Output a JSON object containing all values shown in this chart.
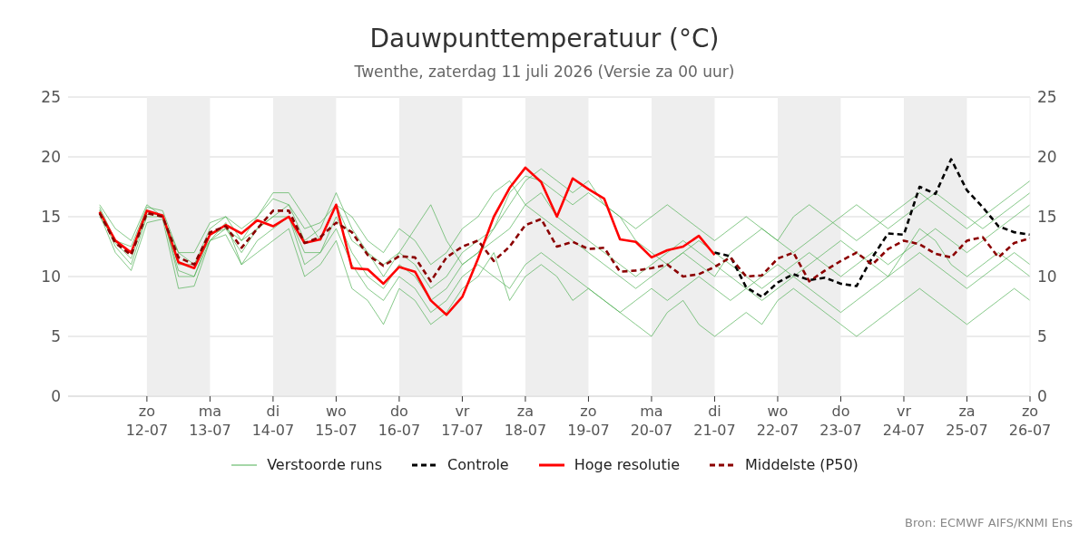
{
  "chart_data": {
    "type": "line",
    "title": "Dauwpunttemperatuur (°C)",
    "subtitle": "Twenthe, zaterdag 11 juli 2026 (Versie za 00 uur)",
    "x": [
      "2026-07-11T06:00",
      "2026-07-11T12:00",
      "2026-07-11T18:00",
      "2026-07-12T00:00",
      "2026-07-12T06:00",
      "2026-07-12T12:00",
      "2026-07-12T18:00",
      "2026-07-13T00:00",
      "2026-07-13T06:00",
      "2026-07-13T12:00",
      "2026-07-13T18:00",
      "2026-07-14T00:00",
      "2026-07-14T06:00",
      "2026-07-14T12:00",
      "2026-07-14T18:00",
      "2026-07-15T00:00",
      "2026-07-15T06:00",
      "2026-07-15T12:00",
      "2026-07-15T18:00",
      "2026-07-16T00:00",
      "2026-07-16T06:00",
      "2026-07-16T12:00",
      "2026-07-16T18:00",
      "2026-07-17T00:00",
      "2026-07-17T06:00",
      "2026-07-17T12:00",
      "2026-07-17T18:00",
      "2026-07-18T00:00",
      "2026-07-18T06:00",
      "2026-07-18T12:00",
      "2026-07-18T18:00",
      "2026-07-19T00:00",
      "2026-07-19T06:00",
      "2026-07-19T12:00",
      "2026-07-19T18:00",
      "2026-07-20T00:00",
      "2026-07-20T06:00",
      "2026-07-20T12:00",
      "2026-07-20T18:00",
      "2026-07-21T00:00",
      "2026-07-21T06:00",
      "2026-07-21T12:00",
      "2026-07-21T18:00",
      "2026-07-22T00:00",
      "2026-07-22T06:00",
      "2026-07-22T12:00",
      "2026-07-22T18:00",
      "2026-07-23T00:00",
      "2026-07-23T06:00",
      "2026-07-23T12:00",
      "2026-07-23T18:00",
      "2026-07-24T00:00",
      "2026-07-24T06:00",
      "2026-07-24T12:00",
      "2026-07-24T18:00",
      "2026-07-25T00:00",
      "2026-07-25T06:00",
      "2026-07-25T12:00",
      "2026-07-25T18:00",
      "2026-07-26T00:00"
    ],
    "series": [
      {
        "name": "Verstoorde runs",
        "color": "#4caf50",
        "line_style": "solid",
        "values": [
          15.8,
          13,
          12.5,
          15.8,
          15.5,
          12,
          11,
          14,
          15,
          14,
          15,
          16.5,
          16,
          14,
          14.5,
          16,
          13,
          12,
          11,
          12,
          11,
          9,
          10,
          12,
          13,
          14,
          17,
          18.4,
          18,
          17,
          16,
          17,
          16,
          15,
          13,
          12,
          11,
          12,
          13,
          12,
          11,
          10,
          9,
          10,
          11,
          12,
          11,
          10,
          11,
          12,
          11,
          12,
          13,
          14,
          13,
          12,
          13,
          14,
          15,
          16
        ]
      },
      {
        "color": "#4caf50",
        "line_style": "solid",
        "values": [
          15.2,
          12,
          10.5,
          14.5,
          14.8,
          9,
          9.2,
          13,
          13.5,
          11,
          12,
          13,
          14,
          10,
          11,
          13,
          9,
          8,
          6,
          9,
          8,
          6,
          7,
          9,
          10,
          12,
          8,
          10,
          11,
          10,
          8,
          9,
          8,
          7,
          6,
          5,
          7,
          8,
          6,
          5,
          6,
          7,
          6,
          8,
          9,
          8,
          7,
          6,
          5,
          6,
          7,
          8,
          9,
          8,
          7,
          6,
          7,
          8,
          9,
          8
        ]
      },
      {
        "color": "#4caf50",
        "line_style": "solid",
        "values": [
          16,
          14,
          13,
          16,
          15,
          12,
          12,
          14.5,
          15,
          13,
          15,
          17,
          17,
          15,
          13,
          16,
          15,
          13,
          12,
          14,
          13,
          11,
          12,
          14,
          15,
          17,
          18,
          16,
          15,
          14,
          13,
          12,
          11,
          10,
          9,
          10,
          11,
          12,
          11,
          10,
          12,
          13,
          14,
          13,
          12,
          13,
          14,
          15,
          16,
          15,
          14,
          15,
          16,
          17,
          16,
          15,
          14,
          15,
          16,
          17
        ]
      },
      {
        "color": "#4caf50",
        "line_style": "solid",
        "values": [
          15.5,
          12.5,
          11,
          15,
          15,
          10.5,
          10,
          13.5,
          14,
          12,
          14,
          15,
          15,
          12,
          12,
          15,
          12,
          10,
          9,
          11,
          10,
          8,
          9,
          11,
          12,
          13,
          14,
          16,
          17,
          15,
          14,
          13,
          12,
          11,
          10,
          11,
          12,
          13,
          12,
          11,
          10,
          9,
          8,
          9,
          10,
          11,
          12,
          13,
          12,
          11,
          10,
          12,
          14,
          13,
          11,
          10,
          11,
          12,
          11,
          10
        ]
      },
      {
        "color": "#4caf50",
        "line_style": "solid",
        "values": [
          15,
          13,
          12,
          15.5,
          15,
          11,
          11,
          13,
          14,
          13,
          14,
          15,
          16,
          13,
          14,
          17,
          14,
          12,
          10,
          12,
          14,
          16,
          13,
          11,
          12,
          14,
          16,
          18,
          19,
          18,
          17,
          18,
          16,
          15,
          14,
          15,
          16,
          15,
          14,
          13,
          14,
          15,
          14,
          13,
          15,
          16,
          15,
          14,
          13,
          14,
          15,
          16,
          17,
          16,
          15,
          14,
          15,
          16,
          17,
          18
        ]
      },
      {
        "color": "#4caf50",
        "line_style": "solid",
        "values": [
          15.6,
          12.8,
          11.5,
          15.2,
          15.2,
          10,
          10,
          13,
          14.5,
          11,
          13,
          14,
          15,
          11,
          12,
          14,
          11,
          9,
          8,
          10,
          9,
          7,
          8,
          10,
          11,
          10,
          9,
          11,
          12,
          11,
          10,
          9,
          8,
          7,
          8,
          9,
          8,
          9,
          10,
          9,
          8,
          9,
          10,
          11,
          10,
          9,
          8,
          7,
          8,
          9,
          10,
          11,
          12,
          11,
          10,
          9,
          10,
          11,
          12,
          11
        ]
      },
      {
        "name": "Controle",
        "color": "#000000",
        "line_style": "dashed",
        "values": [
          null,
          null,
          null,
          null,
          null,
          null,
          null,
          null,
          null,
          null,
          null,
          null,
          null,
          null,
          null,
          null,
          null,
          null,
          null,
          null,
          null,
          null,
          null,
          null,
          null,
          null,
          null,
          null,
          null,
          null,
          null,
          null,
          null,
          null,
          null,
          null,
          null,
          null,
          null,
          12.0,
          11.7,
          9.1,
          8.3,
          9.5,
          10.2,
          9.7,
          9.9,
          9.4,
          9.2,
          11.6,
          13.6,
          13.5,
          17.5,
          16.9,
          19.8,
          17.2,
          15.8,
          14.2,
          13.7,
          13.5
        ]
      },
      {
        "name": "Hoge resolutie",
        "color": "#ff0000",
        "line_style": "solid",
        "values": [
          15.4,
          13,
          12,
          15.5,
          15.1,
          11.2,
          10.7,
          13.5,
          14.3,
          13.6,
          14.7,
          14.2,
          15.0,
          12.8,
          13.1,
          16.0,
          10.7,
          10.6,
          9.4,
          10.8,
          10.4,
          8.0,
          6.8,
          8.3,
          11.5,
          15.0,
          17.4,
          19.1,
          17.9,
          15.0,
          18.2,
          17.3,
          16.5,
          13.1,
          12.9,
          11.6,
          12.2,
          12.5,
          13.4,
          11.8,
          null,
          null,
          null,
          null,
          null,
          null,
          null,
          null,
          null,
          null,
          null,
          null,
          null,
          null,
          null,
          null,
          null,
          null,
          null,
          null
        ]
      },
      {
        "name": "Middelste (P50)",
        "color": "#8b0000",
        "line_style": "dashed",
        "values": [
          15.3,
          12.8,
          11.8,
          15.3,
          15.0,
          11.6,
          11.0,
          13.7,
          14.2,
          12.4,
          14.0,
          15.5,
          15.5,
          12.8,
          13.3,
          14.5,
          13.7,
          11.8,
          10.9,
          11.7,
          11.6,
          9.6,
          11.6,
          12.5,
          13.0,
          11.3,
          12.5,
          14.3,
          14.8,
          12.5,
          12.9,
          12.3,
          12.4,
          10.4,
          10.5,
          10.7,
          11.0,
          10.0,
          10.2,
          10.8,
          11.6,
          10.0,
          10.1,
          11.5,
          12.0,
          9.6,
          10.5,
          11.3,
          12.0,
          11.0,
          12.3,
          13.0,
          12.7,
          11.9,
          11.6,
          13.0,
          13.3,
          11.6,
          12.8,
          13.2
        ]
      }
    ],
    "xlim": [
      "2026-07-10T18:00",
      "2026-07-26T00:00"
    ],
    "xticks": [
      {
        "value": "2026-07-12",
        "label": "zo\n12-07"
      },
      {
        "value": "2026-07-13",
        "label": "ma\n13-07"
      },
      {
        "value": "2026-07-14",
        "label": "di\n14-07"
      },
      {
        "value": "2026-07-15",
        "label": "wo\n15-07"
      },
      {
        "value": "2026-07-16",
        "label": "do\n16-07"
      },
      {
        "value": "2026-07-17",
        "label": "vr\n17-07"
      },
      {
        "value": "2026-07-18",
        "label": "za\n18-07"
      },
      {
        "value": "2026-07-19",
        "label": "zo\n19-07"
      },
      {
        "value": "2026-07-20",
        "label": "ma\n20-07"
      },
      {
        "value": "2026-07-21",
        "label": "di\n21-07"
      },
      {
        "value": "2026-07-22",
        "label": "wo\n22-07"
      },
      {
        "value": "2026-07-23",
        "label": "do\n23-07"
      },
      {
        "value": "2026-07-24",
        "label": "vr\n24-07"
      },
      {
        "value": "2026-07-25",
        "label": "za\n25-07"
      },
      {
        "value": "2026-07-26",
        "label": "zo\n26-07"
      }
    ],
    "ylim": [
      0,
      25
    ],
    "yticks": [
      0,
      5,
      10,
      15,
      20,
      25
    ],
    "y2lim": [
      0,
      25
    ],
    "y2ticks": [
      0,
      5,
      10,
      15,
      20,
      25
    ],
    "bands": [
      {
        "axis": "x",
        "from": "2026-07-12",
        "to": "2026-07-13",
        "color": "#eeeeee"
      },
      {
        "axis": "x",
        "from": "2026-07-14",
        "to": "2026-07-15",
        "color": "#eeeeee"
      },
      {
        "axis": "x",
        "from": "2026-07-16",
        "to": "2026-07-17",
        "color": "#eeeeee"
      },
      {
        "axis": "x",
        "from": "2026-07-18",
        "to": "2026-07-19",
        "color": "#eeeeee"
      },
      {
        "axis": "x",
        "from": "2026-07-20",
        "to": "2026-07-21",
        "color": "#eeeeee"
      },
      {
        "axis": "x",
        "from": "2026-07-22",
        "to": "2026-07-23",
        "color": "#eeeeee"
      },
      {
        "axis": "x",
        "from": "2026-07-24",
        "to": "2026-07-25",
        "color": "#eeeeee"
      }
    ],
    "grid": "y",
    "legend": "bottom",
    "marker": "none",
    "annotations": [
      "Bron: ECMWF AIFS/KNMI Ens"
    ]
  }
}
